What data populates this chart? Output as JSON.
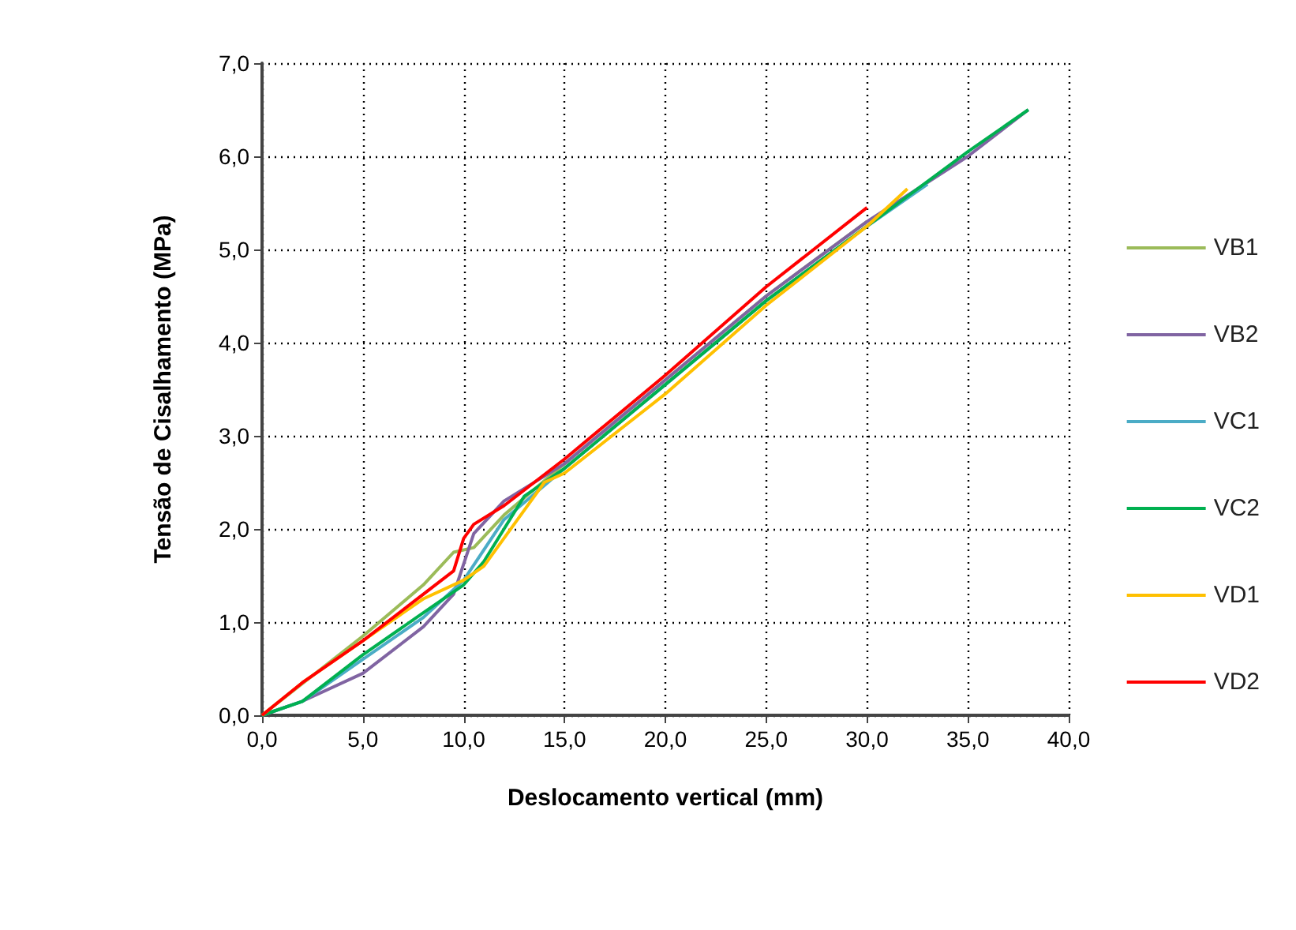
{
  "chart_data": {
    "type": "line",
    "xlabel": "Deslocamento vertical (mm)",
    "ylabel": "Tensão de Cisalhamento (MPa)",
    "xlim": [
      0,
      40
    ],
    "xticks": [
      {
        "value": 0,
        "label": "0,0"
      },
      {
        "value": 5,
        "label": "5,0"
      },
      {
        "value": 10,
        "label": "10,0"
      },
      {
        "value": 15,
        "label": "15,0"
      },
      {
        "value": 20,
        "label": "20,0"
      },
      {
        "value": 25,
        "label": "25,0"
      },
      {
        "value": 30,
        "label": "30,0"
      },
      {
        "value": 35,
        "label": "35,0"
      },
      {
        "value": 40,
        "label": "40,0"
      }
    ],
    "ylim": [
      0,
      7
    ],
    "yticks": [
      {
        "value": 0,
        "label": "0,0"
      },
      {
        "value": 1,
        "label": "1,0"
      },
      {
        "value": 2,
        "label": "2,0"
      },
      {
        "value": 3,
        "label": "3,0"
      },
      {
        "value": 4,
        "label": "4,0"
      },
      {
        "value": 5,
        "label": "5,0"
      },
      {
        "value": 6,
        "label": "6,0"
      },
      {
        "value": 7,
        "label": "7,0"
      }
    ],
    "grid": true,
    "legend": "right",
    "marker": "none",
    "line_style": "solid",
    "series": [
      {
        "name": "VB1",
        "color": "#9bbb59",
        "x": [
          0,
          5,
          8,
          9.5,
          10.5,
          12,
          15,
          20,
          25,
          30
        ],
        "values": [
          0,
          0.85,
          1.4,
          1.75,
          1.8,
          2.15,
          2.7,
          3.6,
          4.5,
          5.3
        ]
      },
      {
        "name": "VB2",
        "color": "#8064a2",
        "x": [
          0,
          2,
          5,
          8,
          9.5,
          10.5,
          12,
          15,
          20,
          25,
          30,
          35,
          38
        ],
        "values": [
          0,
          0.15,
          0.45,
          0.95,
          1.3,
          1.95,
          2.3,
          2.7,
          3.6,
          4.5,
          5.3,
          6.0,
          6.5
        ]
      },
      {
        "name": "VC1",
        "color": "#4bacc6",
        "x": [
          0,
          2,
          5,
          8,
          10,
          12,
          15,
          20,
          25,
          30,
          33
        ],
        "values": [
          0,
          0.15,
          0.6,
          1.05,
          1.45,
          2.1,
          2.65,
          3.55,
          4.45,
          5.25,
          5.7
        ]
      },
      {
        "name": "VC2",
        "color": "#00b050",
        "x": [
          0,
          2,
          5,
          8,
          10,
          11,
          13,
          15,
          20,
          25,
          30,
          35,
          38
        ],
        "values": [
          0,
          0.15,
          0.65,
          1.1,
          1.4,
          1.65,
          2.35,
          2.65,
          3.55,
          4.45,
          5.25,
          6.05,
          6.5
        ]
      },
      {
        "name": "VD1",
        "color": "#ffc000",
        "x": [
          0,
          2,
          5,
          8,
          10,
          11,
          13,
          14,
          15,
          20,
          25,
          30,
          32
        ],
        "values": [
          0,
          0.35,
          0.8,
          1.25,
          1.45,
          1.6,
          2.2,
          2.5,
          2.6,
          3.45,
          4.4,
          5.25,
          5.65
        ]
      },
      {
        "name": "VD2",
        "color": "#ff0000",
        "x": [
          0,
          2,
          5,
          8,
          9.5,
          10,
          10.5,
          12,
          15,
          20,
          25,
          30
        ],
        "values": [
          0,
          0.35,
          0.8,
          1.3,
          1.55,
          1.9,
          2.05,
          2.25,
          2.75,
          3.65,
          4.6,
          5.45
        ]
      }
    ]
  }
}
